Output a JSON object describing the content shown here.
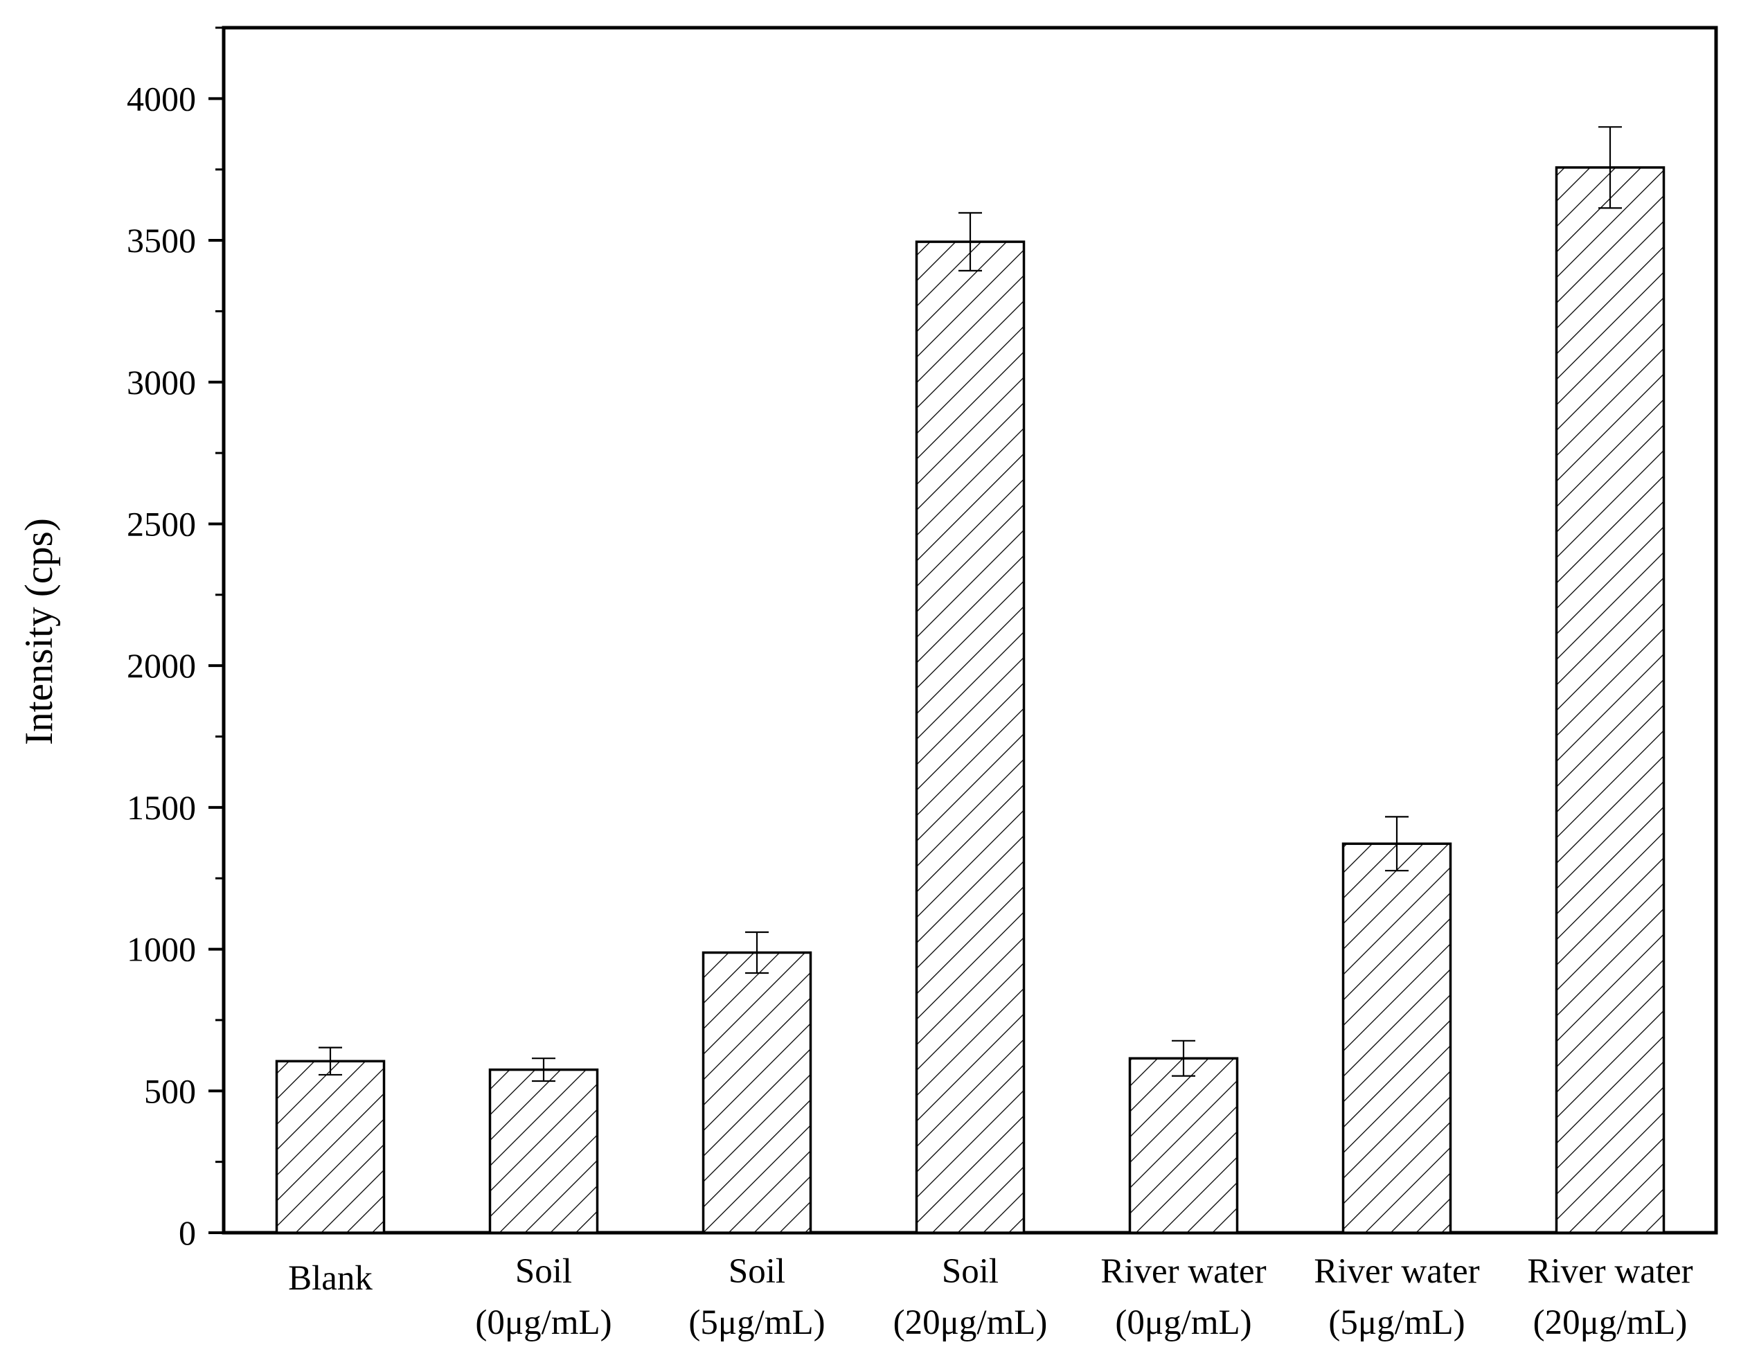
{
  "chart_data": {
    "type": "bar",
    "title": "",
    "xlabel": "",
    "ylabel": "Intensity (cps)",
    "ylim": [
      0,
      4250
    ],
    "yticks": [
      0,
      500,
      1000,
      1500,
      2000,
      2500,
      3000,
      3500,
      4000
    ],
    "y_minor_step": 250,
    "grid": false,
    "bar_fill": "diagonal-hatch",
    "colors": {
      "bar_edge": "#000000",
      "hatch": "#000000",
      "background": "#ffffff"
    },
    "categories": [
      {
        "line1": "Blank",
        "line2": ""
      },
      {
        "line1": "Soil",
        "line2": "(0μg/mL)"
      },
      {
        "line1": "Soil",
        "line2": "(5μg/mL)"
      },
      {
        "line1": "Soil",
        "line2": "(20μg/mL)"
      },
      {
        "line1": "River water",
        "line2": "(0μg/mL)"
      },
      {
        "line1": "River water",
        "line2": "(5μg/mL)"
      },
      {
        "line1": "River water",
        "line2": "(20μg/mL)"
      }
    ],
    "values": [
      605,
      575,
      988,
      3495,
      615,
      1372,
      3757
    ],
    "error": [
      48,
      40,
      72,
      102,
      62,
      95,
      143
    ]
  }
}
